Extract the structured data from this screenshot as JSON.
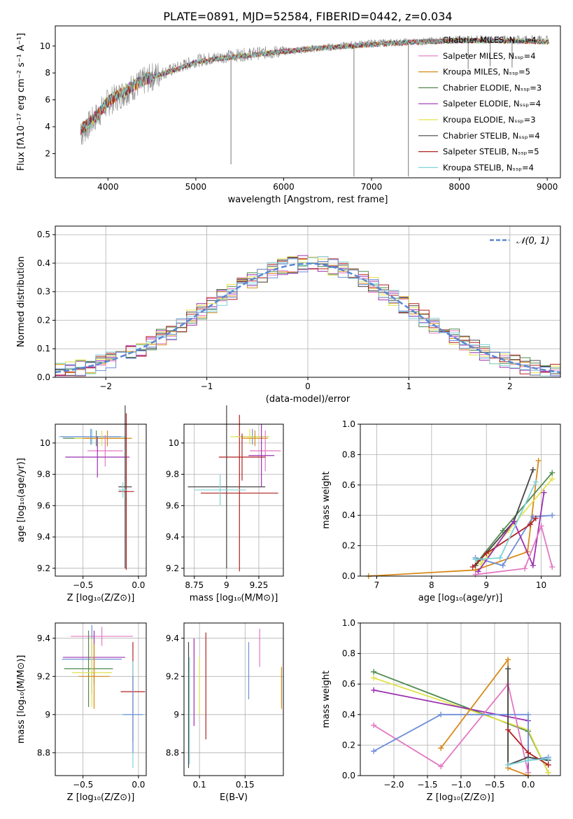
{
  "figure": {
    "title": "PLATE=0891, MJD=52584, FIBERID=0442, z=0.034"
  },
  "chart_data": [
    {
      "id": "spectrum",
      "type": "line",
      "xlabel": "wavelength [Angstrom, rest frame]",
      "ylabel": "Flux [fλ10⁻¹⁷ erg cm⁻² s⁻¹ A⁻¹]",
      "xlim": [
        3400,
        9150
      ],
      "ylim": [
        0.2,
        11.5
      ],
      "xticks": [
        4000,
        5000,
        6000,
        7000,
        8000,
        9000
      ],
      "yticks": [
        2,
        4,
        6,
        8,
        10
      ],
      "grid": false,
      "legend_position": "right",
      "series": [
        {
          "name": "Chabrier MILES, Nₛₛₚ=4",
          "color": "#7f7f7f"
        },
        {
          "name": "Salpeter MILES, Nₛₛₚ=4",
          "color": "#e377c2"
        },
        {
          "name": "Kroupa MILES, Nₛₛₚ=5",
          "color": "#d88a1a"
        },
        {
          "name": "Chabrier ELODIE, Nₛₛₚ=3",
          "color": "#4f8a4f"
        },
        {
          "name": "Salpeter ELODIE, Nₛₛₚ=4",
          "color": "#9b30b0"
        },
        {
          "name": "Kroupa ELODIE, Nₛₛₚ=3",
          "color": "#e2e24a"
        },
        {
          "name": "Chabrier STELIB, Nₛₛₚ=4",
          "color": "#444444"
        },
        {
          "name": "Salpeter STELIB, Nₛₛₚ=5",
          "color": "#b22222"
        },
        {
          "name": "Kroupa STELIB, Nₛₛₚ=4",
          "color": "#7fd3d8"
        }
      ],
      "data_trend": {
        "x": [
          3700,
          3900,
          4000,
          4100,
          4300,
          4500,
          4800,
          5000,
          5300,
          5600,
          6000,
          6500,
          7000,
          7500,
          8000,
          8500,
          9000
        ],
        "y": [
          3.5,
          5.0,
          5.8,
          6.2,
          7.0,
          7.7,
          8.4,
          8.9,
          9.2,
          9.4,
          9.6,
          9.9,
          10.2,
          10.3,
          10.5,
          10.5,
          10.5
        ]
      },
      "model_trend": {
        "x": [
          3700,
          3900,
          4000,
          4100,
          4300,
          4500,
          4800,
          5000,
          5300,
          5600,
          6000,
          6500,
          7000,
          7500,
          8000,
          8500,
          9000
        ],
        "y": [
          3.8,
          5.0,
          5.9,
          6.3,
          7.1,
          7.7,
          8.3,
          8.8,
          9.1,
          9.3,
          9.6,
          9.9,
          10.1,
          10.3,
          10.4,
          10.4,
          10.3
        ]
      },
      "absorption_dips": [
        {
          "x": 5400,
          "y": 1.2
        },
        {
          "x": 6800,
          "y": 0.3
        },
        {
          "x": 7420,
          "y": 0.3
        },
        {
          "x": 8100,
          "y": 8.3
        },
        {
          "x": 8350,
          "y": 8.5
        },
        {
          "x": 8600,
          "y": 8.4
        }
      ]
    },
    {
      "id": "residuals",
      "type": "bar",
      "xlabel": "(data-model)/error",
      "ylabel": "Normed distribution",
      "xlim": [
        -2.5,
        2.5
      ],
      "ylim": [
        0,
        0.53
      ],
      "xticks": [
        -2,
        -1,
        0,
        1,
        2
      ],
      "yticks": [
        0.0,
        0.1,
        0.2,
        0.3,
        0.4,
        0.5
      ],
      "grid": true,
      "legend_position": "top-right",
      "legend_entry": "𝒩(0, 1)",
      "reference_curve": {
        "name": "𝒩(0, 1)",
        "mean": 0,
        "sigma": 1,
        "color": "#5b87d0"
      },
      "bin_width": 0.1,
      "series_colors": [
        "#e377c2",
        "#d88a1a",
        "#4f8a4f",
        "#9b30b0",
        "#e2e24a",
        "#444444",
        "#b22222",
        "#7fd3d8",
        "#6f8fd8"
      ]
    },
    {
      "id": "age-vs-z",
      "type": "scatter",
      "xlabel": "Z [log₁₀(Z/Z⊙)]",
      "ylabel": "age  [log₁₀(age/yr)]",
      "xlim": [
        -0.75,
        0.07
      ],
      "ylim": [
        9.15,
        10.12
      ],
      "xticks": [
        -0.5,
        0.0
      ],
      "xtick_labels": [
        "−0.5",
        "0.0"
      ],
      "yticks": [
        9.2,
        9.4,
        9.6,
        9.8,
        10.0
      ],
      "grid": true,
      "points": [
        {
          "x": -0.42,
          "xerr": 0.3,
          "y": 10.04,
          "yerr": 0.05,
          "color": "#7fd3d8"
        },
        {
          "x": -0.43,
          "xerr": 0.27,
          "y": 10.04,
          "yerr": 0.05,
          "color": "#6f8fd8"
        },
        {
          "x": -0.38,
          "xerr": 0.3,
          "y": 10.03,
          "yerr": 0.05,
          "color": "#4f8a4f"
        },
        {
          "x": -0.33,
          "xerr": 0.25,
          "y": 10.03,
          "yerr": 0.05,
          "color": "#e2e24a"
        },
        {
          "x": -0.28,
          "xerr": 0.22,
          "y": 10.03,
          "yerr": 0.05,
          "color": "#d88a1a"
        },
        {
          "x": -0.3,
          "xerr": 0.16,
          "y": 9.95,
          "yerr": 0.1,
          "color": "#e377c2"
        },
        {
          "x": -0.37,
          "xerr": 0.29,
          "y": 9.91,
          "yerr": 0.13,
          "color": "#9b30b0"
        },
        {
          "x": -0.12,
          "xerr": 0.06,
          "y": 9.72,
          "yerr": 0.52,
          "color": "#444444"
        },
        {
          "x": -0.11,
          "xerr": 0.07,
          "y": 9.69,
          "yerr": 0.5,
          "color": "#b22222"
        },
        {
          "x": -0.14,
          "xerr": 0.04,
          "y": 9.7,
          "yerr": 0.05,
          "color": "#7fd3d8"
        }
      ]
    },
    {
      "id": "age-vs-mass",
      "type": "scatter",
      "xlabel": "mass [log₁₀(M/M⊙)]",
      "ylabel": "",
      "xlim": [
        8.67,
        9.44
      ],
      "ylim": [
        9.15,
        10.12
      ],
      "xticks": [
        8.75,
        9.0,
        9.25
      ],
      "yticks": [
        9.2,
        9.4,
        9.6,
        9.8,
        10.0
      ],
      "grid": true,
      "points": [
        {
          "x": 9.0,
          "xerr": 0.3,
          "y": 9.72,
          "yerr": 0.52,
          "color": "#444444"
        },
        {
          "x": 9.1,
          "xerr": 0.3,
          "y": 9.68,
          "yerr": 0.5,
          "color": "#b22222"
        },
        {
          "x": 9.2,
          "xerr": 0.13,
          "y": 10.04,
          "yerr": 0.05,
          "color": "#6f8fd8"
        },
        {
          "x": 9.18,
          "xerr": 0.15,
          "y": 10.04,
          "yerr": 0.05,
          "color": "#e2e24a"
        },
        {
          "x": 9.22,
          "xerr": 0.1,
          "y": 10.03,
          "yerr": 0.05,
          "color": "#d88a1a"
        },
        {
          "x": 9.3,
          "xerr": 0.12,
          "y": 9.95,
          "yerr": 0.13,
          "color": "#e377c2"
        },
        {
          "x": 9.27,
          "xerr": 0.1,
          "y": 9.92,
          "yerr": 0.2,
          "color": "#9b30b0"
        },
        {
          "x": 9.12,
          "xerr": 0.18,
          "y": 9.91,
          "yerr": 0.15,
          "color": "#b22222"
        },
        {
          "x": 8.95,
          "xerr": 0.2,
          "y": 9.7,
          "yerr": 0.1,
          "color": "#7fd3d8"
        }
      ]
    },
    {
      "id": "mass-weight-vs-age",
      "type": "line",
      "xlabel": "age  [log₁₀(age/yr)]",
      "ylabel": "mass weight",
      "xlim": [
        6.7,
        10.35
      ],
      "ylim": [
        0,
        1.0
      ],
      "xticks": [
        7,
        8,
        9,
        10
      ],
      "yticks": [
        0.0,
        0.2,
        0.4,
        0.6,
        0.8,
        1.0
      ],
      "grid": true,
      "series": [
        {
          "color": "#d88a1a",
          "x": [
            6.85,
            8.8,
            9.75,
            9.95
          ],
          "y": [
            0.0,
            0.04,
            0.16,
            0.76
          ]
        },
        {
          "color": "#6f8fd8",
          "x": [
            8.8,
            9.3,
            9.85,
            10.2
          ],
          "y": [
            0.12,
            0.07,
            0.39,
            0.4
          ]
        },
        {
          "color": "#4f8a4f",
          "x": [
            8.85,
            9.3,
            10.2
          ],
          "y": [
            0.1,
            0.3,
            0.68
          ]
        },
        {
          "color": "#e2e24a",
          "x": [
            8.9,
            9.4,
            10.2
          ],
          "y": [
            0.08,
            0.3,
            0.64
          ]
        },
        {
          "color": "#444444",
          "x": [
            8.8,
            9.5,
            9.85
          ],
          "y": [
            0.07,
            0.36,
            0.7
          ]
        },
        {
          "color": "#b22222",
          "x": [
            8.75,
            9.0,
            9.8,
            9.9
          ],
          "y": [
            0.06,
            0.15,
            0.34,
            0.38
          ]
        },
        {
          "color": "#9b30b0",
          "x": [
            8.85,
            9.5,
            9.85,
            10.05
          ],
          "y": [
            0.03,
            0.36,
            0.07,
            0.55
          ]
        },
        {
          "color": "#e377c2",
          "x": [
            8.8,
            9.7,
            10.0,
            10.2
          ],
          "y": [
            0.01,
            0.05,
            0.33,
            0.06
          ]
        },
        {
          "color": "#7fd3d8",
          "x": [
            8.8,
            9.25,
            9.9
          ],
          "y": [
            0.11,
            0.12,
            0.62
          ]
        }
      ]
    },
    {
      "id": "mass-vs-z",
      "type": "scatter",
      "xlabel": "Z [log₁₀(Z/Z⊙)]",
      "ylabel": "mass [log₁₀(M/M⊙)]",
      "xlim": [
        -0.75,
        0.07
      ],
      "ylim": [
        8.68,
        9.48
      ],
      "xticks": [
        -0.5,
        0.0
      ],
      "xtick_labels": [
        "−0.5",
        "0.0"
      ],
      "yticks": [
        8.8,
        9.0,
        9.2,
        9.4
      ],
      "grid": true,
      "points": [
        {
          "x": -0.33,
          "xerr": 0.28,
          "y": 9.41,
          "yerr": 0.05,
          "color": "#e377c2"
        },
        {
          "x": -0.42,
          "xerr": 0.27,
          "y": 9.29,
          "yerr": 0.18,
          "color": "#6f8fd8"
        },
        {
          "x": -0.4,
          "xerr": 0.28,
          "y": 9.3,
          "yerr": 0.14,
          "color": "#9b30b0"
        },
        {
          "x": -0.45,
          "xerr": 0.22,
          "y": 9.24,
          "yerr": 0.2,
          "color": "#4f8a4f"
        },
        {
          "x": -0.42,
          "xerr": 0.18,
          "y": 9.22,
          "yerr": 0.18,
          "color": "#e2e24a"
        },
        {
          "x": -0.4,
          "xerr": 0.14,
          "y": 9.2,
          "yerr": 0.17,
          "color": "#d88a1a"
        },
        {
          "x": -0.05,
          "xerr": 0.11,
          "y": 9.12,
          "yerr": 0.26,
          "color": "#b22222"
        },
        {
          "x": -0.05,
          "xerr": 0.1,
          "y": 9.0,
          "yerr": 0.28,
          "color": "#7fd3d8"
        },
        {
          "x": -0.05,
          "xerr": 0.09,
          "y": 9.0,
          "yerr": 0.2,
          "color": "#6f8fd8"
        }
      ]
    },
    {
      "id": "mass-vs-ebv",
      "type": "scatter",
      "xlabel": "E(B-V)",
      "ylabel": "",
      "xlim": [
        0.083,
        0.192
      ],
      "ylim": [
        8.68,
        9.48
      ],
      "xticks": [
        0.1,
        0.15
      ],
      "yticks": [
        8.8,
        9.0,
        9.2,
        9.4
      ],
      "grid": true,
      "points": [
        {
          "x": 0.088,
          "y": 9.05,
          "yerr": 0.33,
          "color": "#444444"
        },
        {
          "x": 0.089,
          "y": 9.02,
          "yerr": 0.28,
          "color": "#7fd3d8"
        },
        {
          "x": 0.094,
          "y": 9.17,
          "yerr": 0.23,
          "color": "#9b30b0"
        },
        {
          "x": 0.1,
          "y": 9.15,
          "yerr": 0.15,
          "color": "#e2e24a"
        },
        {
          "x": 0.107,
          "y": 9.15,
          "yerr": 0.28,
          "color": "#b22222"
        },
        {
          "x": 0.154,
          "y": 9.23,
          "yerr": 0.15,
          "color": "#6f8fd8"
        },
        {
          "x": 0.166,
          "y": 9.35,
          "yerr": 0.1,
          "color": "#e377c2"
        },
        {
          "x": 0.19,
          "y": 9.14,
          "yerr": 0.11,
          "color": "#d88a1a"
        }
      ]
    },
    {
      "id": "mass-weight-vs-z",
      "type": "line",
      "xlabel": "Z [log₁₀(Z/Z⊙)]",
      "ylabel": "mass weight",
      "xlim": [
        -2.5,
        0.48
      ],
      "ylim": [
        0,
        1.0
      ],
      "xticks": [
        -2.0,
        -1.5,
        -1.0,
        -0.5,
        0.0
      ],
      "xtick_labels": [
        "−2.0",
        "−1.5",
        "−1.0",
        "−0.5",
        "0.0"
      ],
      "yticks": [
        0.0,
        0.2,
        0.4,
        0.6,
        0.8,
        1.0
      ],
      "grid": true,
      "series": [
        {
          "color": "#4f8a4f",
          "x": [
            -2.3,
            0.0,
            0.3
          ],
          "y": [
            0.68,
            0.29,
            0.02
          ]
        },
        {
          "color": "#e2e24a",
          "x": [
            -2.3,
            0.0,
            0.3
          ],
          "y": [
            0.64,
            0.3,
            0.02
          ]
        },
        {
          "color": "#9b30b0",
          "x": [
            -2.3,
            0.0,
            0.0
          ],
          "y": [
            0.56,
            0.36,
            0.02
          ]
        },
        {
          "color": "#e377c2",
          "x": [
            -2.3,
            -1.3,
            -0.3,
            0.0
          ],
          "y": [
            0.33,
            0.06,
            0.6,
            0.02
          ]
        },
        {
          "color": "#6f8fd8",
          "x": [
            -2.3,
            -1.3,
            0.0,
            0.0,
            0.3
          ],
          "y": [
            0.16,
            0.4,
            0.4,
            0.1,
            0.12
          ]
        },
        {
          "color": "#d88a1a",
          "x": [
            -1.3,
            -0.3,
            -0.3,
            0.0
          ],
          "y": [
            0.18,
            0.76,
            0.05,
            0.0
          ]
        },
        {
          "color": "#444444",
          "x": [
            -0.3,
            -0.3,
            0.0,
            0.3
          ],
          "y": [
            0.7,
            0.07,
            0.12,
            0.1
          ]
        },
        {
          "color": "#b22222",
          "x": [
            -0.3,
            0.0,
            0.3
          ],
          "y": [
            0.3,
            0.15,
            0.07
          ]
        },
        {
          "color": "#7fd3d8",
          "x": [
            -0.3,
            0.0,
            0.3
          ],
          "y": [
            0.07,
            0.1,
            0.11
          ]
        }
      ]
    }
  ]
}
